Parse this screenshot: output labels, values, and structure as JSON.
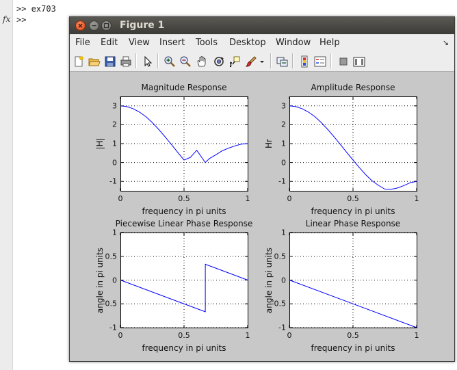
{
  "command_window": {
    "lines": [
      ">> ex703",
      ">>"
    ],
    "fx_symbol": "fx"
  },
  "figure_window": {
    "title": "Figure 1",
    "buttons": [
      "close",
      "minimize",
      "maximize"
    ]
  },
  "menubar": {
    "items": [
      "File",
      "Edit",
      "View",
      "Insert",
      "Tools",
      "Desktop",
      "Window",
      "Help"
    ],
    "dock_arrow": "↘"
  },
  "toolbar": {
    "tools": [
      "new-figure-icon",
      "open-file-icon",
      "save-icon",
      "print-icon",
      "pointer-icon",
      "zoom-in-icon",
      "zoom-out-icon",
      "pan-icon",
      "rotate-icon",
      "data-cursor-icon",
      "brush-icon",
      "brush-dropdown-icon",
      "link-plot-icon",
      "colorbar-icon",
      "legend-icon",
      "hide-plot-tools-icon",
      "show-plot-tools-icon"
    ]
  },
  "chart_data": [
    {
      "type": "line",
      "title": "Magnitude Response",
      "xlabel": "frequency in pi units",
      "ylabel": "|H|",
      "xlim": [
        0,
        1
      ],
      "ylim": [
        -1.5,
        3.5
      ],
      "xticks": [
        "0",
        "0.5",
        "1"
      ],
      "yticks": [
        "3",
        "2",
        "1",
        "0",
        "-1"
      ],
      "ytick_values": [
        3,
        2,
        1,
        0,
        -1
      ],
      "grid": true,
      "series": [
        {
          "color": "#0000ff",
          "x": [
            0,
            0.05,
            0.1,
            0.15,
            0.2,
            0.25,
            0.3,
            0.35,
            0.4,
            0.45,
            0.5,
            0.55,
            0.6,
            0.667,
            0.7,
            0.75,
            0.8,
            0.85,
            0.9,
            0.95,
            1.0
          ],
          "y": [
            3.0,
            2.96,
            2.85,
            2.67,
            2.43,
            2.12,
            1.76,
            1.37,
            0.96,
            0.54,
            0.13,
            0.27,
            0.65,
            0.0,
            0.21,
            0.41,
            0.62,
            0.76,
            0.88,
            0.97,
            1.0
          ]
        }
      ]
    },
    {
      "type": "line",
      "title": "Amplitude Response",
      "xlabel": "frequency in pi units",
      "ylabel": "Hr",
      "xlim": [
        0,
        1
      ],
      "ylim": [
        -1.5,
        3.5
      ],
      "xticks": [
        "0",
        "0.5",
        "1"
      ],
      "yticks": [
        "3",
        "2",
        "1",
        "0",
        "-1"
      ],
      "ytick_values": [
        3,
        2,
        1,
        0,
        -1
      ],
      "grid": true,
      "series": [
        {
          "color": "#0000ff",
          "x": [
            0,
            0.05,
            0.1,
            0.15,
            0.2,
            0.25,
            0.3,
            0.35,
            0.4,
            0.45,
            0.5,
            0.55,
            0.6,
            0.65,
            0.7,
            0.75,
            0.8,
            0.85,
            0.9,
            0.95,
            1.0
          ],
          "y": [
            3.0,
            2.96,
            2.85,
            2.67,
            2.43,
            2.12,
            1.76,
            1.37,
            0.96,
            0.54,
            0.13,
            -0.27,
            -0.65,
            -0.97,
            -1.21,
            -1.41,
            -1.42,
            -1.35,
            -1.22,
            -1.07,
            -1.0
          ]
        }
      ]
    },
    {
      "type": "line",
      "title": "Piecewise Linear Phase Response",
      "xlabel": "frequency in pi units",
      "ylabel": "angle in pi units",
      "xlim": [
        0,
        1
      ],
      "ylim": [
        -1,
        1
      ],
      "xticks": [
        "0",
        "0.5",
        "1"
      ],
      "yticks": [
        "1",
        "0.5",
        "0",
        "-0.5",
        "-1"
      ],
      "ytick_values": [
        1,
        0.5,
        0,
        -0.5,
        -1
      ],
      "grid": true,
      "series": [
        {
          "color": "#0000ff",
          "x": [
            0,
            0.667,
            0.667,
            1.0
          ],
          "y": [
            0,
            -0.667,
            0.333,
            0
          ]
        }
      ]
    },
    {
      "type": "line",
      "title": "Linear Phase Response",
      "xlabel": "frequency in pi units",
      "ylabel": "angle in pi units",
      "xlim": [
        0,
        1
      ],
      "ylim": [
        -1,
        1
      ],
      "xticks": [
        "0",
        "0.5",
        "1"
      ],
      "yticks": [
        "1",
        "0.5",
        "0",
        "-0.5",
        "-1"
      ],
      "ytick_values": [
        1,
        0.5,
        0,
        -0.5,
        -1
      ],
      "grid": true,
      "series": [
        {
          "color": "#0000ff",
          "x": [
            0,
            1.0
          ],
          "y": [
            0,
            -1.0
          ]
        }
      ]
    }
  ]
}
